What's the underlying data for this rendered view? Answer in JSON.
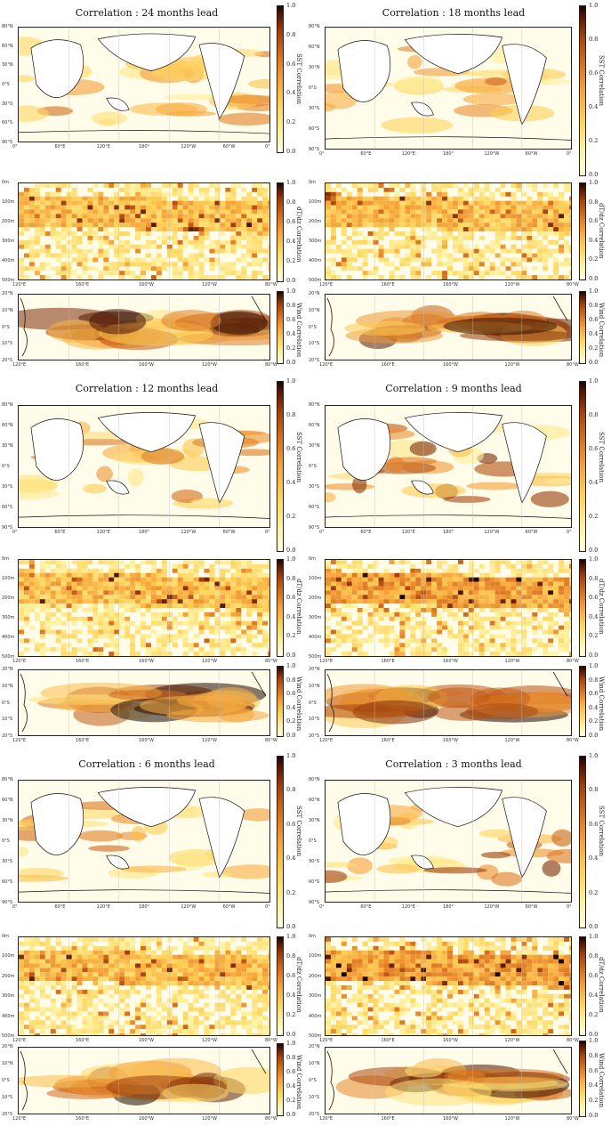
{
  "columns": [
    {
      "rows": [
        {
          "title": "Correlation : 24 months lead"
        },
        {
          "title": "Correlation : 12 months lead"
        },
        {
          "title": "Correlation : 6 months lead"
        }
      ]
    },
    {
      "rows": [
        {
          "title": "Correlation : 18 months lead"
        },
        {
          "title": "Correlation : 9 months lead"
        },
        {
          "title": "Correlation : 3 months lead"
        }
      ]
    }
  ],
  "colorbars": {
    "sst": {
      "label": "SST Correlation",
      "ticks": [
        "1.0",
        "0.8",
        "0.6",
        "0.4",
        "0.2",
        "0.0"
      ]
    },
    "sst_18": {
      "label": "SST Correlation",
      "ticks": [
        "1.0",
        "0.8",
        "0.6",
        "0.4",
        "0.2",
        "0.0"
      ]
    },
    "depth": {
      "label": "dT/dz Correlation",
      "ticks": [
        "1.0",
        "0.8",
        "0.6",
        "0.4",
        "0.2",
        "0.0"
      ]
    },
    "wind": {
      "label": "Wind Correlation",
      "ticks": [
        "1.0",
        "0.8",
        "0.6",
        "0.4",
        "0.2",
        "0.0"
      ]
    }
  },
  "axes": {
    "sst_lat": [
      "80°N",
      "60°N",
      "30°N",
      "0°S",
      "30°S",
      "60°S",
      "90°S"
    ],
    "sst_lon": [
      "0°",
      "60°E",
      "120°E",
      "180°",
      "120°W",
      "60°W",
      "0°"
    ],
    "depth_levels": [
      "0m",
      "100m",
      "200m",
      "300m",
      "400m",
      "500m"
    ],
    "depth_lon": [
      "120°E",
      "160°E",
      "160°W",
      "120°W",
      "80°W"
    ],
    "wind_lat": [
      "20°N",
      "10°N",
      "0°S",
      "10°S",
      "20°S"
    ],
    "wind_lon": [
      "120°E",
      "160°E",
      "160°W",
      "120°W",
      "80°W"
    ]
  },
  "colors": {
    "low": "#ffffe0",
    "mid": "#f6a23a",
    "high": "#5d1a04",
    "max": "#1c0500"
  }
}
